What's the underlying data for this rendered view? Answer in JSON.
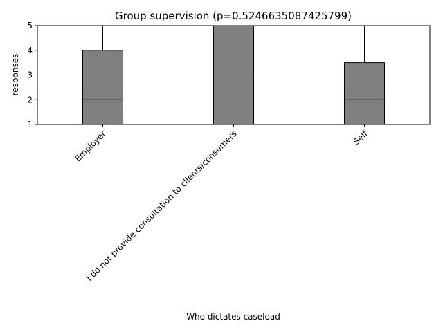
{
  "chart_data": {
    "type": "box",
    "title": "Group supervision (p=0.5246635087425799)",
    "xlabel": "Who dictates caseload",
    "ylabel": "responses",
    "ylim": [
      1,
      5
    ],
    "yticks": [
      1,
      2,
      3,
      4,
      5
    ],
    "categories": [
      "Employer",
      "I do not provide consultation to clients/consumers",
      "Self"
    ],
    "boxes": [
      {
        "q1": 1,
        "median": 2,
        "q3": 4,
        "whisker_low": 1,
        "whisker_high": 5
      },
      {
        "q1": 1,
        "median": 3,
        "q3": 5,
        "whisker_low": 1,
        "whisker_high": 5
      },
      {
        "q1": 1,
        "median": 2,
        "q3": 3.5,
        "whisker_low": 1,
        "whisker_high": 5
      }
    ],
    "box_color": "#808080",
    "line_color": "#000000",
    "grid": false
  }
}
